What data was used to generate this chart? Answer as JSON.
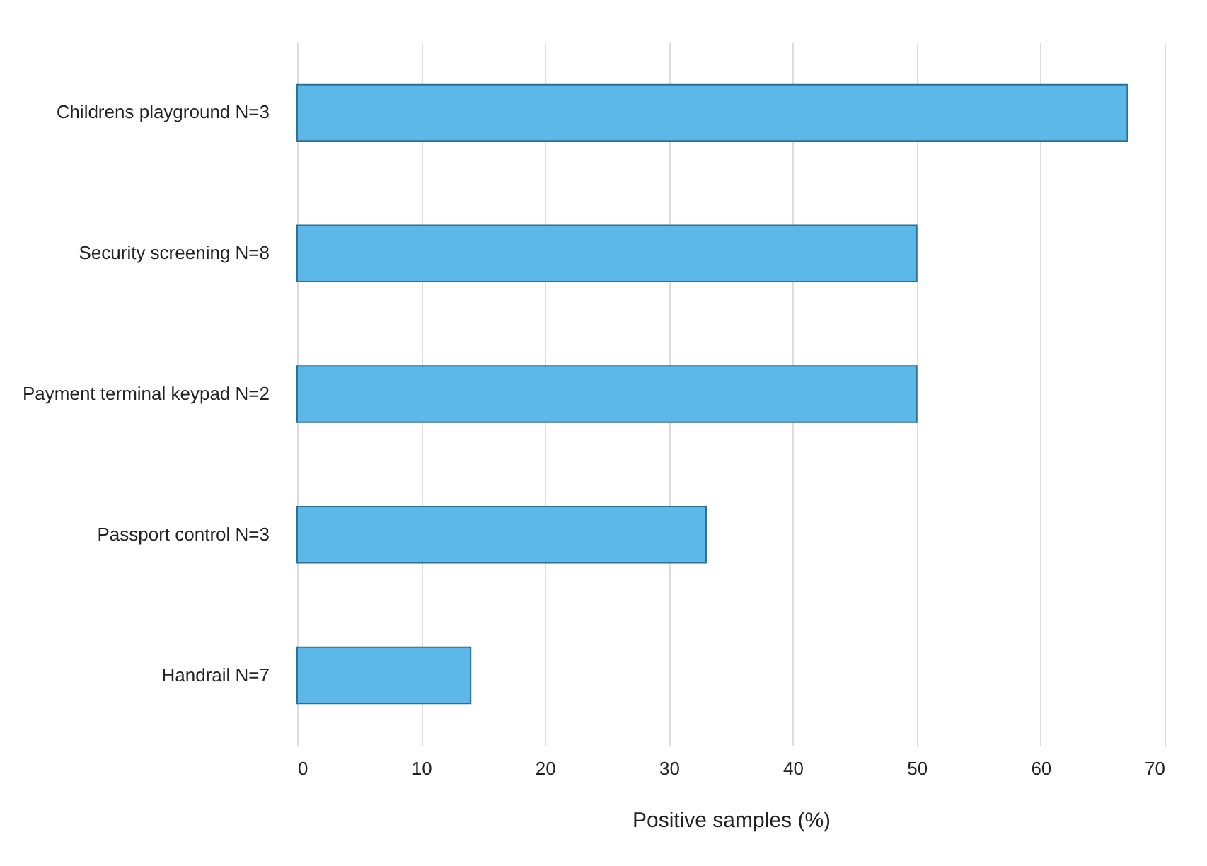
{
  "chart_data": {
    "type": "bar",
    "orientation": "horizontal",
    "categories": [
      "Childrens playground N=3",
      "Security screening N=8",
      "Payment terminal keypad N=2",
      "Passport control N=3",
      "Handrail N=7"
    ],
    "values": [
      67,
      50,
      50,
      33,
      14
    ],
    "color": "#5bb8e8",
    "xlabel": "Positive samples (%)",
    "xlim": [
      0,
      70
    ],
    "xticks": [
      0,
      10,
      20,
      30,
      40,
      50,
      60,
      70
    ],
    "grid": "x"
  }
}
